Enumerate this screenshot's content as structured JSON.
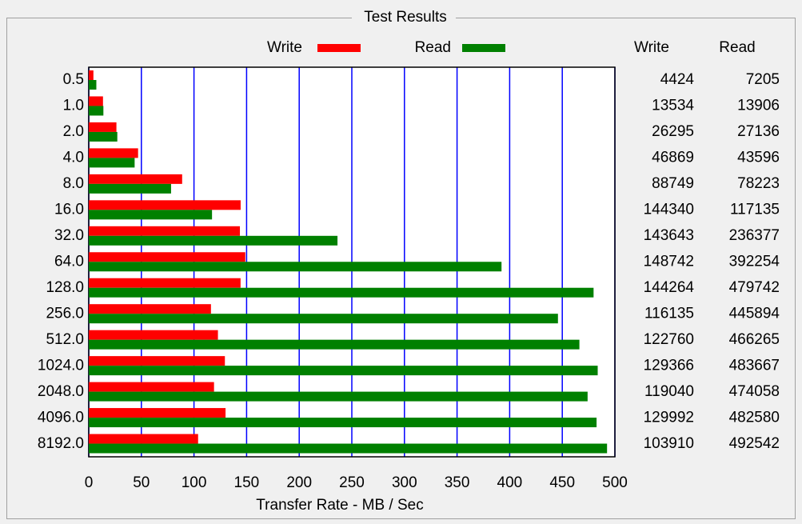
{
  "chart_data": {
    "type": "bar",
    "orientation": "horizontal",
    "title": "Test Results",
    "x_label": "Transfer Rate - MB / Sec",
    "categories": [
      "0.5",
      "1.0",
      "2.0",
      "4.0",
      "8.0",
      "16.0",
      "32.0",
      "64.0",
      "128.0",
      "256.0",
      "512.0",
      "1024.0",
      "2048.0",
      "4096.0",
      "8192.0"
    ],
    "series": [
      {
        "name": "Write",
        "color": "#ff0000",
        "values": [
          4.424,
          13.534,
          26.295,
          46.869,
          88.749,
          144.34,
          143.643,
          148.742,
          144.264,
          116.135,
          122.76,
          129.366,
          119.04,
          129.992,
          103.91
        ],
        "value_labels": [
          "4424",
          "13534",
          "26295",
          "46869",
          "88749",
          "144340",
          "143643",
          "148742",
          "144264",
          "116135",
          "122760",
          "129366",
          "119040",
          "129992",
          "103910"
        ]
      },
      {
        "name": "Read",
        "color": "#008000",
        "values": [
          7.205,
          13.906,
          27.136,
          43.596,
          78.223,
          117.135,
          236.377,
          392.254,
          479.742,
          445.894,
          466.265,
          483.667,
          474.058,
          482.58,
          492.542
        ],
        "value_labels": [
          "7205",
          "13906",
          "27136",
          "43596",
          "78223",
          "117135",
          "236377",
          "392254",
          "479742",
          "445894",
          "466265",
          "483667",
          "474058",
          "482580",
          "492542"
        ]
      }
    ],
    "xlim": [
      0,
      500
    ],
    "xticks": [
      0,
      50,
      100,
      150,
      200,
      250,
      300,
      350,
      400,
      450,
      500
    ],
    "grid": true,
    "grid_color": "#0000ff"
  }
}
